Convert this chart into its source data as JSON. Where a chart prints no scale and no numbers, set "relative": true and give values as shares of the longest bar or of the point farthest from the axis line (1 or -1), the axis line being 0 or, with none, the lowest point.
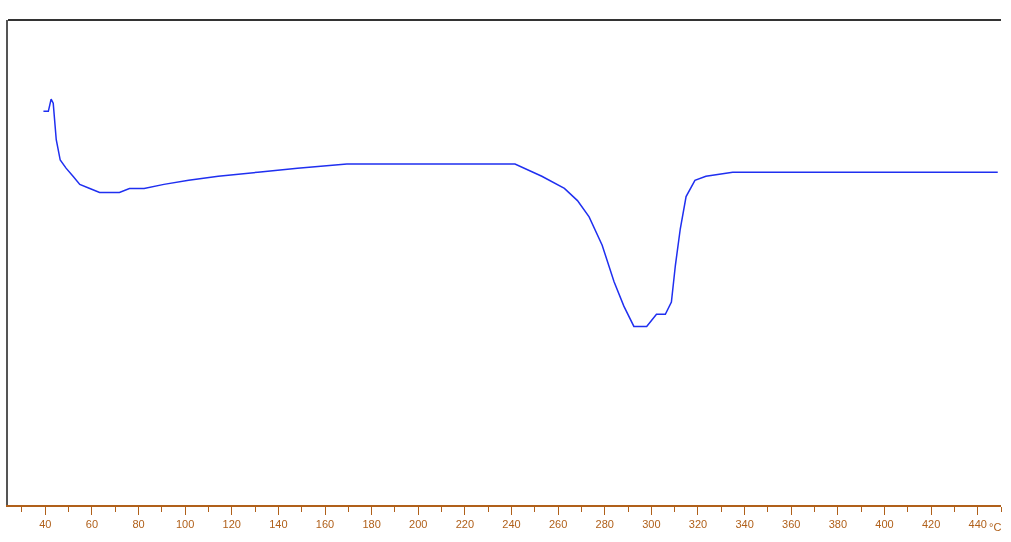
{
  "chart_data": {
    "type": "line",
    "relative": true,
    "xlabel": "°C",
    "x": [
      39.2,
      41.3,
      42.5,
      43.4,
      44.7,
      46.4,
      48.9,
      51.9,
      54.8,
      59.1,
      63.3,
      68.8,
      71.8,
      76.1,
      82.4,
      90.9,
      101.5,
      114.2,
      131.2,
      148.2,
      169.4,
      190.6,
      211.8,
      233.0,
      241.5,
      253.0,
      262.7,
      268.3,
      273.3,
      278.9,
      284.0,
      288.2,
      292.5,
      295.4,
      298.0,
      302.2,
      306.0,
      308.6,
      310.3,
      312.4,
      314.9,
      318.7,
      323.4,
      334.9,
      343.3,
      381.5,
      424.0,
      448.6
    ],
    "series": [
      {
        "color": "#1f2ff0",
        "values": [
          0.97,
          0.97,
          1.0,
          0.99,
          0.9,
          0.85,
          0.83,
          0.81,
          0.79,
          0.78,
          0.77,
          0.77,
          0.77,
          0.78,
          0.78,
          0.79,
          0.8,
          0.81,
          0.82,
          0.83,
          0.84,
          0.84,
          0.84,
          0.84,
          0.84,
          0.81,
          0.78,
          0.75,
          0.71,
          0.64,
          0.55,
          0.49,
          0.44,
          0.44,
          0.44,
          0.47,
          0.47,
          0.5,
          0.59,
          0.68,
          0.76,
          0.8,
          0.81,
          0.82,
          0.82,
          0.82,
          0.82,
          0.82
        ]
      }
    ],
    "xlim": [
      24,
      450
    ],
    "xticks": [
      40,
      60,
      80,
      100,
      120,
      140,
      160,
      180,
      200,
      220,
      240,
      260,
      280,
      300,
      320,
      340,
      360,
      380,
      400,
      420,
      440
    ],
    "marker": "none",
    "line_style": "solid"
  }
}
